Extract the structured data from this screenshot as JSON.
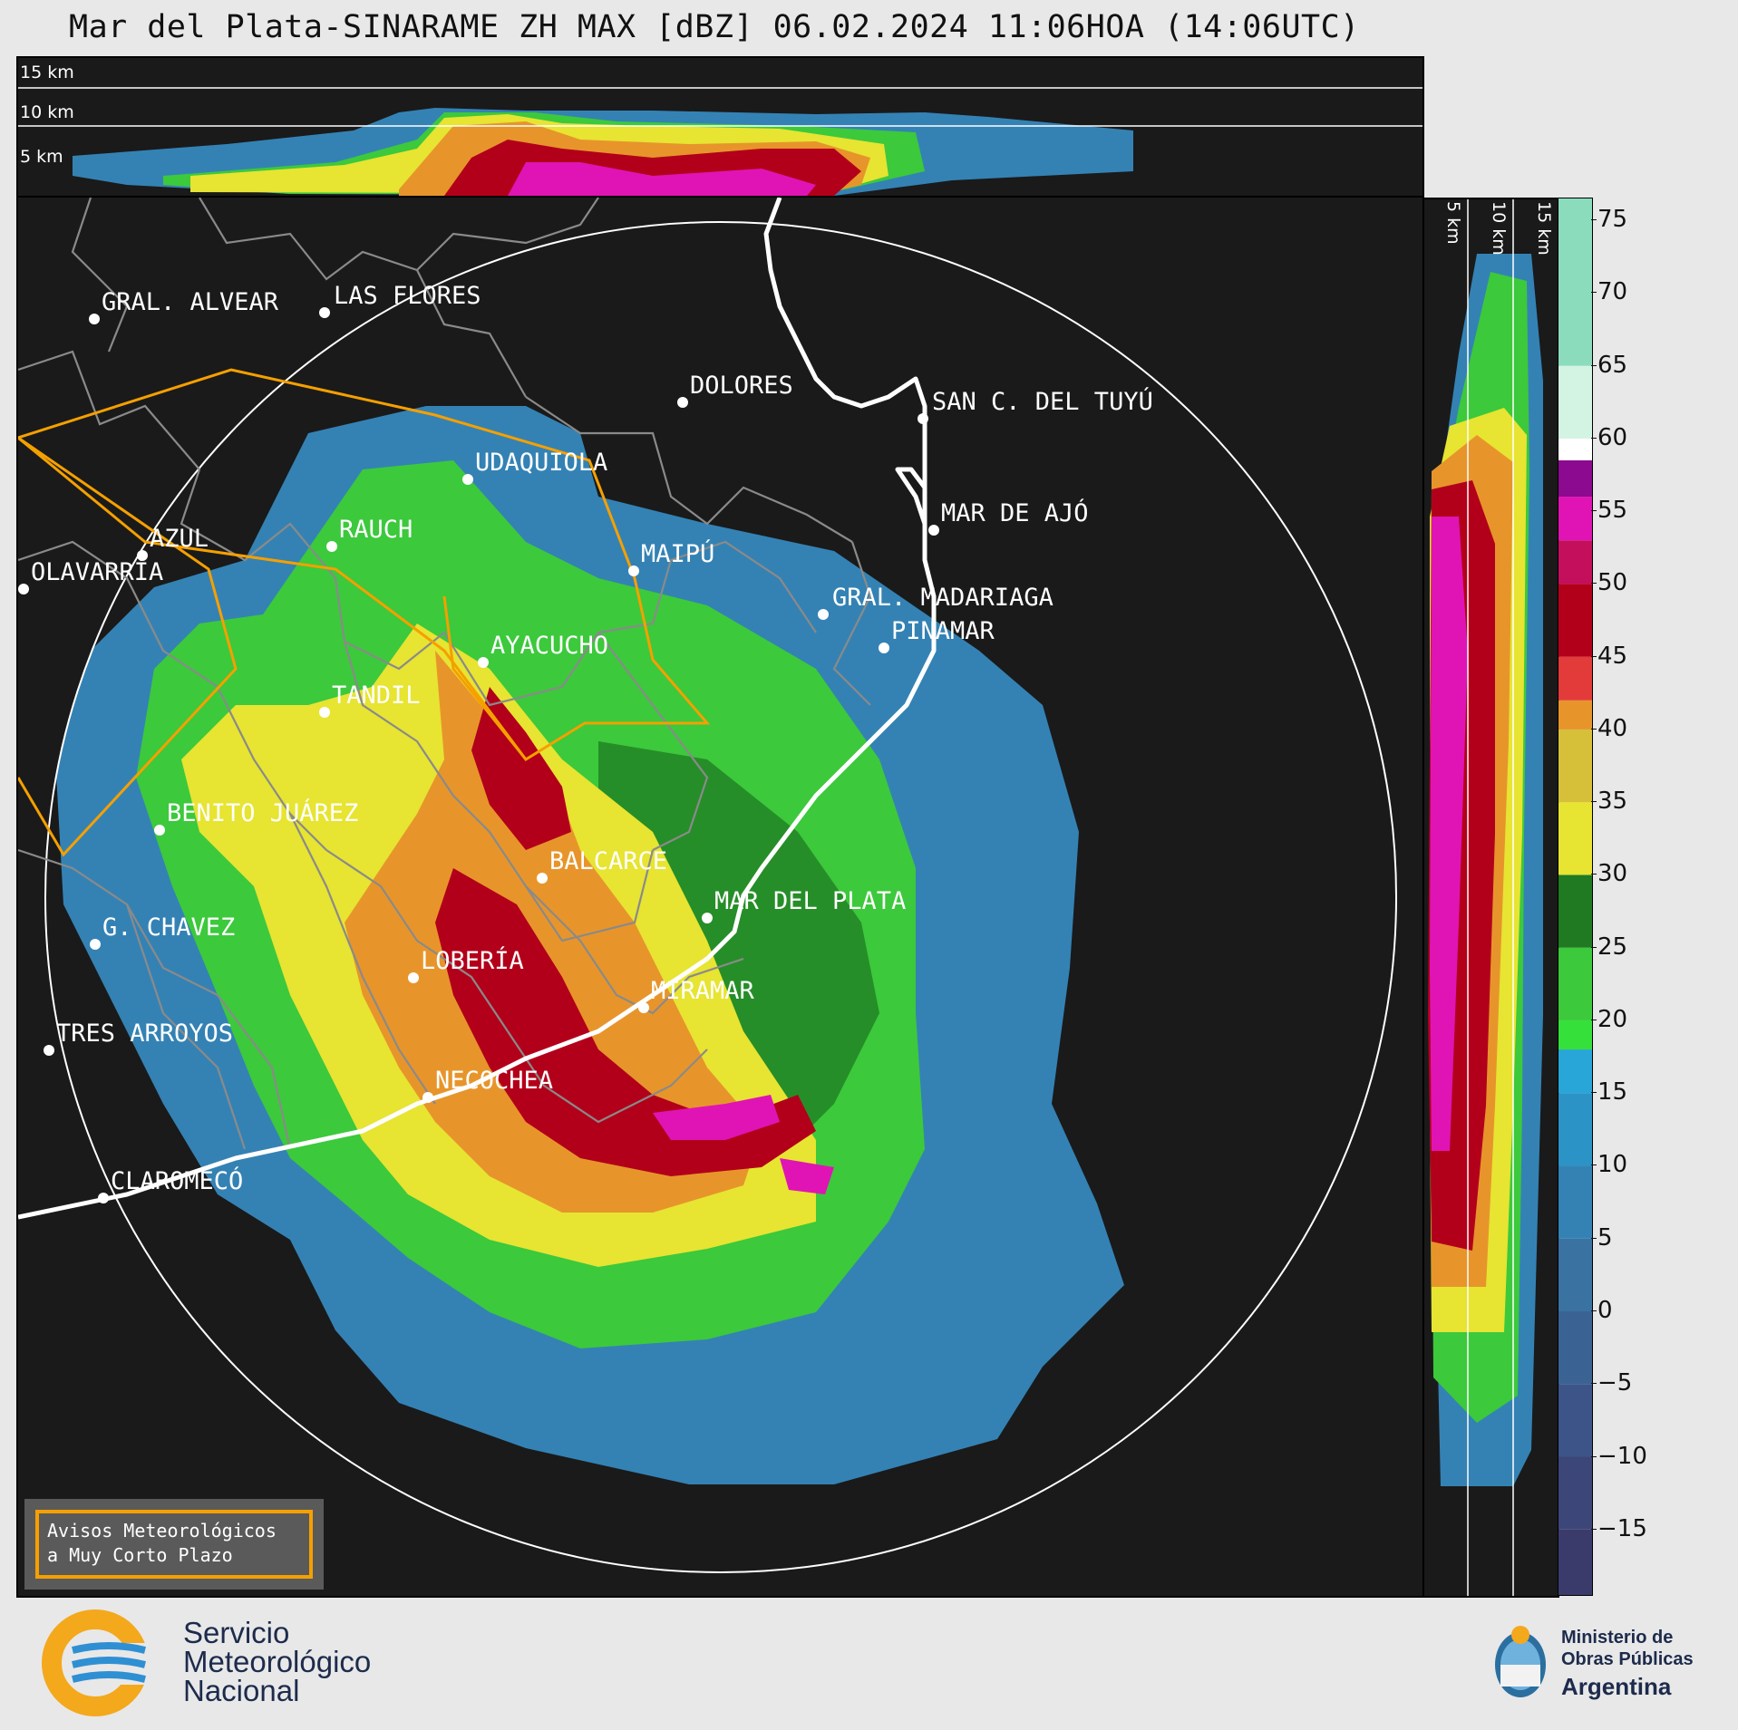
{
  "title": "Mar del Plata-SINARAME ZH MAX [dBZ] 06.02.2024 11:06HOA (14:06UTC)",
  "top_panel_labels": [
    "15 km",
    "10 km",
    "5 km"
  ],
  "side_panel_labels": [
    "5 km",
    "10 km",
    "15 km"
  ],
  "cities": [
    {
      "name": "GRAL. ALVEAR"
    },
    {
      "name": "LAS FLORES"
    },
    {
      "name": "DOLORES"
    },
    {
      "name": "SAN C. DEL TUYÚ"
    },
    {
      "name": "UDAQUIOLA"
    },
    {
      "name": "MAR DE AJÓ"
    },
    {
      "name": "AZUL"
    },
    {
      "name": "RAUCH"
    },
    {
      "name": "MAIPÚ"
    },
    {
      "name": "OLAVARRÍA"
    },
    {
      "name": "GRAL. MADARIAGA"
    },
    {
      "name": "AYACUCHO"
    },
    {
      "name": "PINAMAR"
    },
    {
      "name": "TANDIL"
    },
    {
      "name": "BENITO JUÁREZ"
    },
    {
      "name": "BALCARCE"
    },
    {
      "name": "MAR DEL PLATA"
    },
    {
      "name": "G. CHAVEZ"
    },
    {
      "name": "LOBERÍA"
    },
    {
      "name": "MIRAMAR"
    },
    {
      "name": "TRES ARROYOS"
    },
    {
      "name": "NECOCHEA"
    },
    {
      "name": "CLAROMECÓ"
    }
  ],
  "legend_box": {
    "line1": "Avisos Meteorológicos",
    "line2": "a Muy Corto Plazo"
  },
  "colorbar": {
    "unit": "dBZ",
    "ticks": [
      "75",
      "70",
      "65",
      "60",
      "55",
      "50",
      "45",
      "40",
      "35",
      "30",
      "25",
      "20",
      "15",
      "10",
      "5",
      "0",
      "−5",
      "−10",
      "−15"
    ],
    "range": [
      -19.5,
      76.5
    ],
    "bands": [
      {
        "from": -19.5,
        "to": -15,
        "color": "#3b3b6b"
      },
      {
        "from": -15,
        "to": -10,
        "color": "#3d4679"
      },
      {
        "from": -10,
        "to": -5,
        "color": "#3c5487"
      },
      {
        "from": -5,
        "to": 0,
        "color": "#3a6394"
      },
      {
        "from": 0,
        "to": 5,
        "color": "#3a72a2"
      },
      {
        "from": 5,
        "to": 10,
        "color": "#3482b4"
      },
      {
        "from": 10,
        "to": 15,
        "color": "#2b93c6"
      },
      {
        "from": 15,
        "to": 18,
        "color": "#28a6d8"
      },
      {
        "from": 18,
        "to": 20,
        "color": "#35e03a"
      },
      {
        "from": 20,
        "to": 25,
        "color": "#3cc93c"
      },
      {
        "from": 25,
        "to": 30,
        "color": "#1f7a22"
      },
      {
        "from": 30,
        "to": 35,
        "color": "#e7e432"
      },
      {
        "from": 35,
        "to": 40,
        "color": "#d6c03a"
      },
      {
        "from": 40,
        "to": 42,
        "color": "#e7952b"
      },
      {
        "from": 42,
        "to": 45,
        "color": "#e33a3a"
      },
      {
        "from": 45,
        "to": 50,
        "color": "#b3001a"
      },
      {
        "from": 50,
        "to": 53,
        "color": "#c40f5c"
      },
      {
        "from": 53,
        "to": 56,
        "color": "#e014b4"
      },
      {
        "from": 56,
        "to": 58.5,
        "color": "#8b0a8f"
      },
      {
        "from": 58.5,
        "to": 60,
        "color": "#ffffff"
      },
      {
        "from": 60,
        "to": 65,
        "color": "#d3f3e3"
      },
      {
        "from": 65,
        "to": 76.5,
        "color": "#8bdcbd"
      }
    ]
  },
  "logos": {
    "smn": [
      "Servicio",
      "Meteorológico",
      "Nacional"
    ],
    "ministry": [
      "Ministerio de",
      "Obras Públicas",
      "Argentina"
    ]
  }
}
